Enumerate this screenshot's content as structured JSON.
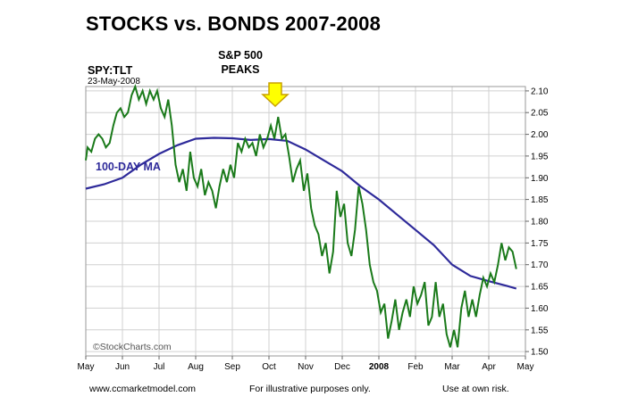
{
  "title": "STOCKS vs. BONDS 2007-2008",
  "annotation": {
    "line1": "S&P 500",
    "line2": "PEAKS"
  },
  "ticker": "SPY:TLT",
  "date": "23-May-2008",
  "ma_label": "100-DAY MA",
  "watermark": "©StockCharts.com",
  "footer": {
    "left": "www.ccmarketmodel.com",
    "center": "For illustrative purposes only.",
    "right": "Use at own risk."
  },
  "colors": {
    "price": "#1a7a1a",
    "ma": "#2e2a9a",
    "arrow_fill": "#ffff00",
    "arrow_stroke": "#c8a000"
  },
  "chart_data": {
    "type": "line",
    "title": "STOCKS vs. BONDS 2007-2008",
    "xlabel": "",
    "ylabel": "",
    "x_tick_labels": [
      "May",
      "Jun",
      "Jul",
      "Aug",
      "Sep",
      "Oct",
      "Nov",
      "Dec",
      "2008",
      "Feb",
      "Mar",
      "Apr",
      "May"
    ],
    "y_ticks": [
      1.5,
      1.55,
      1.6,
      1.65,
      1.7,
      1.75,
      1.8,
      1.85,
      1.9,
      1.95,
      2.0,
      2.05,
      2.1
    ],
    "ylim": [
      1.49,
      2.11
    ],
    "y_axis_side": "right",
    "grid": true,
    "x_unit": "months since May 1, 2007",
    "series": [
      {
        "name": "SPY:TLT",
        "x": [
          0.0,
          0.05,
          0.15,
          0.25,
          0.35,
          0.45,
          0.55,
          0.65,
          0.75,
          0.85,
          0.95,
          1.05,
          1.15,
          1.25,
          1.35,
          1.45,
          1.55,
          1.65,
          1.75,
          1.85,
          1.95,
          2.05,
          2.15,
          2.25,
          2.35,
          2.45,
          2.55,
          2.65,
          2.75,
          2.85,
          2.95,
          3.05,
          3.15,
          3.25,
          3.35,
          3.45,
          3.55,
          3.65,
          3.75,
          3.85,
          3.95,
          4.05,
          4.15,
          4.25,
          4.35,
          4.45,
          4.55,
          4.65,
          4.75,
          4.85,
          4.95,
          5.05,
          5.15,
          5.25,
          5.35,
          5.45,
          5.55,
          5.65,
          5.75,
          5.85,
          5.95,
          6.05,
          6.15,
          6.25,
          6.35,
          6.45,
          6.55,
          6.65,
          6.75,
          6.85,
          6.95,
          7.05,
          7.15,
          7.25,
          7.35,
          7.45,
          7.55,
          7.65,
          7.75,
          7.85,
          7.95,
          8.05,
          8.15,
          8.25,
          8.35,
          8.45,
          8.55,
          8.65,
          8.75,
          8.85,
          8.95,
          9.05,
          9.15,
          9.25,
          9.35,
          9.45,
          9.55,
          9.65,
          9.75,
          9.85,
          9.95,
          10.05,
          10.15,
          10.25,
          10.35,
          10.45,
          10.55,
          10.65,
          10.75,
          10.85,
          10.95,
          11.05,
          11.15,
          11.25,
          11.35,
          11.45,
          11.55,
          11.65,
          11.75
        ],
        "values": [
          1.94,
          1.97,
          1.96,
          1.99,
          2.0,
          1.99,
          1.97,
          1.98,
          2.02,
          2.05,
          2.06,
          2.04,
          2.05,
          2.09,
          2.11,
          2.08,
          2.1,
          2.07,
          2.1,
          2.08,
          2.1,
          2.06,
          2.04,
          2.08,
          2.02,
          1.93,
          1.89,
          1.92,
          1.87,
          1.96,
          1.9,
          1.88,
          1.92,
          1.86,
          1.89,
          1.87,
          1.83,
          1.88,
          1.92,
          1.89,
          1.93,
          1.9,
          1.98,
          1.96,
          1.99,
          1.97,
          1.98,
          1.95,
          2.0,
          1.97,
          1.99,
          2.02,
          1.99,
          2.04,
          1.99,
          2.0,
          1.95,
          1.89,
          1.92,
          1.94,
          1.87,
          1.91,
          1.83,
          1.79,
          1.77,
          1.72,
          1.75,
          1.68,
          1.73,
          1.87,
          1.81,
          1.84,
          1.75,
          1.72,
          1.78,
          1.88,
          1.84,
          1.78,
          1.7,
          1.66,
          1.64,
          1.59,
          1.61,
          1.53,
          1.57,
          1.62,
          1.55,
          1.59,
          1.62,
          1.58,
          1.65,
          1.61,
          1.63,
          1.66,
          1.56,
          1.58,
          1.66,
          1.58,
          1.61,
          1.54,
          1.51,
          1.55,
          1.51,
          1.6,
          1.64,
          1.58,
          1.62,
          1.58,
          1.63,
          1.67,
          1.65,
          1.68,
          1.66,
          1.7,
          1.75,
          1.71,
          1.74,
          1.73,
          1.69
        ]
      },
      {
        "name": "100-DAY MA",
        "x": [
          0.0,
          0.5,
          1.0,
          1.5,
          2.0,
          2.5,
          3.0,
          3.5,
          4.0,
          4.5,
          5.0,
          5.5,
          6.0,
          6.5,
          7.0,
          7.5,
          8.0,
          8.5,
          9.0,
          9.5,
          10.0,
          10.5,
          11.0,
          11.5,
          11.75
        ],
        "values": [
          1.875,
          1.885,
          1.9,
          1.93,
          1.955,
          1.975,
          1.99,
          1.992,
          1.991,
          1.987,
          1.989,
          1.985,
          1.965,
          1.94,
          1.915,
          1.88,
          1.85,
          1.815,
          1.78,
          1.745,
          1.7,
          1.674,
          1.662,
          1.651,
          1.645
        ]
      }
    ],
    "annotations": [
      {
        "text": "S&P 500 PEAKS",
        "x": 5.25,
        "marker": "down-arrow"
      }
    ]
  }
}
